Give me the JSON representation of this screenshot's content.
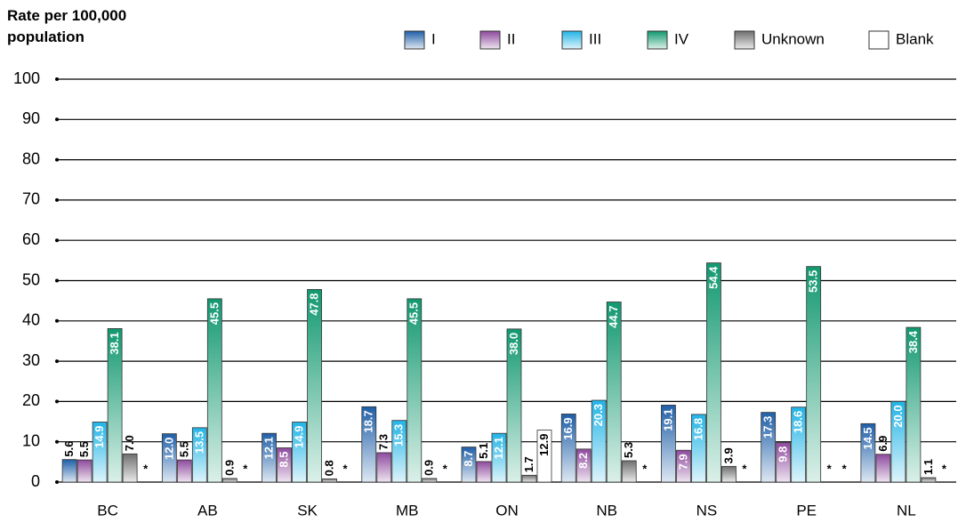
{
  "chart_data": {
    "type": "bar",
    "y_label": "Rate per 100,000 population",
    "categories": [
      "BC",
      "AB",
      "SK",
      "MB",
      "ON",
      "NB",
      "NS",
      "PE",
      "NL"
    ],
    "series": [
      {
        "name": "I",
        "color": "#1f5fa8",
        "values": [
          5.6,
          12.0,
          12.1,
          18.7,
          8.7,
          16.9,
          19.1,
          17.3,
          14.5
        ],
        "value_labels": [
          "5.6",
          "12.0",
          "12.1",
          "18.7",
          "8.7",
          "16.9",
          "19.1",
          "17.3",
          "14.5"
        ]
      },
      {
        "name": "II",
        "color": "#8e4a9e",
        "values": [
          5.5,
          5.5,
          8.5,
          7.3,
          5.1,
          8.2,
          7.9,
          9.8,
          6.9
        ],
        "value_labels": [
          "5.5",
          "5.5",
          "8.5",
          "7.3",
          "5.1",
          "8.2",
          "7.9",
          "9.8",
          "6.9"
        ]
      },
      {
        "name": "III",
        "color": "#22b4e6",
        "values": [
          14.9,
          13.5,
          14.9,
          15.3,
          12.1,
          20.3,
          16.8,
          18.6,
          20.0
        ],
        "value_labels": [
          "14.9",
          "13.5",
          "14.9",
          "15.3",
          "12.1",
          "20.3",
          "16.8",
          "18.6",
          "20.0"
        ]
      },
      {
        "name": "IV",
        "color": "#12986f",
        "values": [
          38.1,
          45.5,
          47.8,
          45.5,
          38.0,
          44.7,
          54.4,
          53.5,
          38.4
        ],
        "value_labels": [
          "38.1",
          "45.5",
          "47.8",
          "45.5",
          "38.0",
          "44.7",
          "54.4",
          "53.5",
          "38.4"
        ]
      },
      {
        "name": "Unknown",
        "color": "#6f6f6f",
        "values": [
          7.0,
          0.9,
          0.8,
          0.9,
          1.7,
          5.3,
          3.9,
          null,
          1.1
        ],
        "value_labels": [
          "7.0",
          "0.9",
          "0.8",
          "0.9",
          "1.7",
          "5.3",
          "3.9",
          "*",
          "1.1"
        ]
      },
      {
        "name": "Blank",
        "color": "#ffffff",
        "values": [
          null,
          null,
          null,
          null,
          12.9,
          null,
          null,
          null,
          null
        ],
        "value_labels": [
          "*",
          "*",
          "*",
          "*",
          "12.9",
          "*",
          "*",
          "*",
          "*"
        ]
      }
    ],
    "ylim": [
      0,
      100
    ],
    "yticks": [
      0,
      10,
      20,
      30,
      40,
      50,
      60,
      70,
      80,
      90,
      100
    ],
    "grid": true,
    "legend": "top-right"
  }
}
